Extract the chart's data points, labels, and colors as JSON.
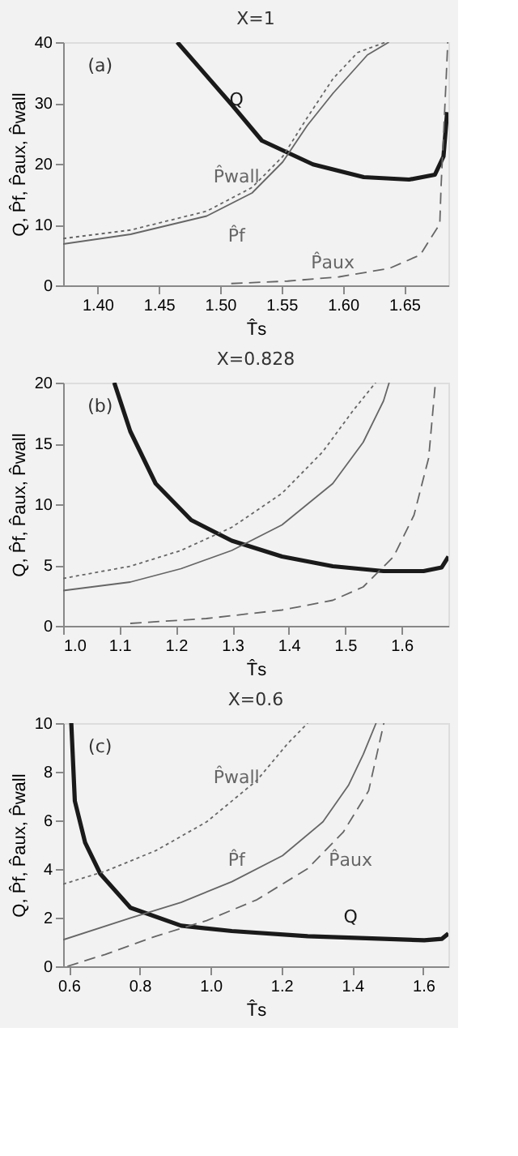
{
  "chart_data": [
    {
      "type": "line",
      "title": "X=1",
      "xlabel": "T̂s",
      "ylabel": "Q, P̂f, P̂aux, P̂wall",
      "xlim": [
        1.372,
        1.686
      ],
      "ylim": [
        0,
        40
      ],
      "xticks": [
        {
          "value": 1.4,
          "label": "1.40"
        },
        {
          "value": 1.45,
          "label": "1.45"
        },
        {
          "value": 1.5,
          "label": "1.50"
        },
        {
          "value": 1.55,
          "label": "1.55"
        },
        {
          "value": 1.6,
          "label": "1.60"
        },
        {
          "value": 1.65,
          "label": "1.65"
        }
      ],
      "yticks": [
        0,
        10,
        20,
        30,
        40
      ],
      "grid": false,
      "series": [
        {
          "name": "Q",
          "color": "#1a1a1a",
          "line_style": "solid",
          "x": [
            1.465,
            1.5095,
            1.534,
            1.5756,
            1.617,
            1.654,
            1.675,
            1.682,
            1.685
          ],
          "values": [
            40,
            29.7,
            23.8,
            19.9,
            17.8,
            17.4,
            18.2,
            21.2,
            28.5
          ]
        },
        {
          "name": "P̂f",
          "color": "#666666",
          "line_style": "solid",
          "x": [
            1.372,
            1.427,
            1.489,
            1.526,
            1.551,
            1.571,
            1.592,
            1.62,
            1.6375
          ],
          "values": [
            6.8,
            8.4,
            11.4,
            15.2,
            20.3,
            26.3,
            31.6,
            37.9,
            40
          ]
        },
        {
          "name": "P̂wall",
          "color": "#666666",
          "line_style": "dotted",
          "x": [
            1.372,
            1.427,
            1.489,
            1.526,
            1.551,
            1.571,
            1.592,
            1.612,
            1.635
          ],
          "values": [
            7.7,
            9.1,
            12.2,
            16.1,
            21.2,
            27.6,
            34.0,
            38.3,
            40
          ]
        },
        {
          "name": "P̂aux",
          "color": "#666666",
          "line_style": "dashed",
          "x": [
            1.509,
            1.555,
            1.597,
            1.638,
            1.663,
            1.679,
            1.68,
            1.684,
            1.6855
          ],
          "values": [
            0.3,
            0.7,
            1.4,
            2.8,
            5.0,
            10.1,
            16.1,
            33.2,
            40
          ]
        }
      ],
      "annotations": [
        "(a)"
      ]
    },
    {
      "type": "line",
      "title": "X=0.828",
      "xlabel": "T̂s",
      "ylabel": "Q, P̂f, P̂aux, P̂wall",
      "xlim": [
        1.0,
        1.683
      ],
      "ylim": [
        0,
        20
      ],
      "xticks": [
        {
          "value": 1.0,
          "label": "1.0"
        },
        1.1,
        1.2,
        1.3,
        1.4,
        1.5,
        1.6
      ],
      "yticks": [
        0,
        5,
        10,
        15,
        20
      ],
      "grid": false,
      "series": [
        {
          "color": "#1a1a1a",
          "line_style": "solid",
          "x": [
            1.0906,
            1.119,
            1.164,
            1.227,
            1.299,
            1.388,
            1.478,
            1.568,
            1.639,
            1.671,
            1.683
          ],
          "values": [
            20,
            16.0,
            11.7,
            8.7,
            7.0,
            5.7,
            4.9,
            4.5,
            4.5,
            4.8,
            5.7
          ]
        },
        {
          "color": "#666666",
          "line_style": "solid",
          "x": [
            1.0,
            1.119,
            1.209,
            1.299,
            1.388,
            1.478,
            1.532,
            1.568,
            1.578
          ],
          "values": [
            2.9,
            3.6,
            4.7,
            6.2,
            8.3,
            11.7,
            15.1,
            18.5,
            20
          ]
        },
        {
          "color": "#666666",
          "line_style": "dotted",
          "x": [
            1.0,
            1.119,
            1.209,
            1.299,
            1.388,
            1.46,
            1.514,
            1.554
          ],
          "values": [
            3.9,
            4.9,
            6.2,
            8.1,
            10.9,
            14.3,
            17.7,
            20
          ]
        },
        {
          "color": "#666666",
          "line_style": "dashed",
          "x": [
            1.119,
            1.254,
            1.388,
            1.478,
            1.532,
            1.586,
            1.622,
            1.648,
            1.66
          ],
          "values": [
            0.2,
            0.6,
            1.3,
            2.1,
            3.2,
            5.7,
            9.1,
            13.8,
            20
          ]
        }
      ],
      "annotations": [
        "(b)"
      ]
    },
    {
      "type": "line",
      "title": "X=0.6",
      "xlabel": "T̂s",
      "ylabel": "Q, P̂f, P̂aux, P̂wall",
      "xlim": [
        0.584,
        1.671
      ],
      "ylim": [
        0,
        10
      ],
      "xticks": [
        0.6,
        0.8,
        {
          "value": 1.0,
          "label": "1.0"
        },
        1.2,
        1.4,
        1.6
      ],
      "yticks": [
        0,
        2,
        4,
        6,
        8,
        10
      ],
      "grid": false,
      "series": [
        {
          "name": "Q",
          "color": "#1a1a1a",
          "line_style": "solid",
          "x": [
            0.607,
            0.617,
            0.646,
            0.689,
            0.774,
            0.917,
            1.06,
            1.274,
            1.489,
            1.603,
            1.653,
            1.671
          ],
          "values": [
            10,
            6.8,
            5.09,
            3.8,
            2.41,
            1.67,
            1.45,
            1.24,
            1.13,
            1.07,
            1.13,
            1.35
          ]
        },
        {
          "name": "P̂f",
          "color": "#666666",
          "line_style": "solid",
          "x": [
            0.584,
            0.774,
            0.917,
            1.06,
            1.203,
            1.317,
            1.389,
            1.431,
            1.467
          ],
          "values": [
            1.09,
            1.99,
            2.63,
            3.48,
            4.55,
            5.94,
            7.44,
            8.72,
            10
          ]
        },
        {
          "name": "P̂wall",
          "color": "#666666",
          "line_style": "dotted",
          "x": [
            0.584,
            0.703,
            0.846,
            0.989,
            1.131,
            1.217,
            1.274
          ],
          "values": [
            3.38,
            3.91,
            4.76,
            5.94,
            7.65,
            9.15,
            10
          ]
        },
        {
          "name": "P̂aux",
          "color": "#666666",
          "line_style": "dashed",
          "x": [
            0.596,
            0.703,
            0.846,
            0.989,
            1.131,
            1.274,
            1.374,
            1.446,
            1.489
          ],
          "values": [
            0,
            0.49,
            1.24,
            1.88,
            2.74,
            4.02,
            5.51,
            7.22,
            10
          ]
        }
      ],
      "annotations": [
        "(c)"
      ]
    }
  ]
}
